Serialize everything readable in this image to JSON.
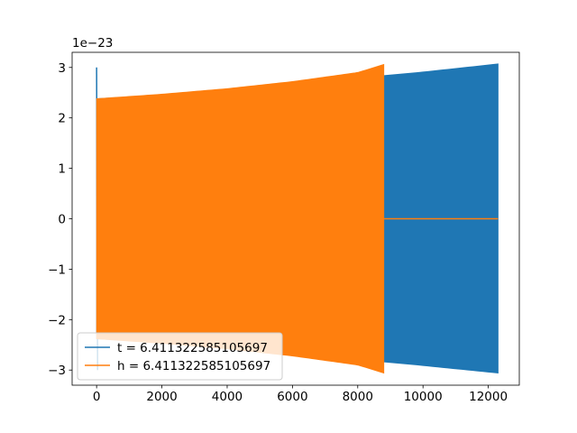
{
  "chart_data": {
    "type": "line",
    "title": "",
    "xlabel": "",
    "ylabel": "",
    "y_offset_label": "1e−23",
    "y_scale_exponent": -23,
    "xlim": [
      -750,
      12950
    ],
    "ylim": [
      -3.3,
      3.3
    ],
    "x_ticks": [
      0,
      2000,
      4000,
      6000,
      8000,
      10000,
      12000
    ],
    "x_tick_labels": [
      "0",
      "2000",
      "4000",
      "6000",
      "8000",
      "10000",
      "12000"
    ],
    "y_ticks": [
      -3,
      -2,
      -1,
      0,
      1,
      2,
      3
    ],
    "y_tick_labels": [
      "−3",
      "−2",
      "−1",
      "0",
      "1",
      "2",
      "3"
    ],
    "grid": false,
    "legend_position": "lower-left",
    "series": [
      {
        "name": "t = 6.411322585105697",
        "color": "#1f77b4",
        "style": "dense-oscillation",
        "start_spike": [
          [
            0,
            3.0
          ],
          [
            30,
            -3.0
          ]
        ],
        "envelope_x": [
          0,
          2000,
          4000,
          6000,
          8000,
          10000,
          12300
        ],
        "envelope_upper": [
          2.38,
          2.45,
          2.54,
          2.65,
          2.79,
          2.91,
          3.07
        ],
        "envelope_lower": [
          -2.38,
          -2.45,
          -2.54,
          -2.65,
          -2.79,
          -2.91,
          -3.06
        ]
      },
      {
        "name": "h = 6.411322585105697",
        "color": "#ff7f0e",
        "style": "dense-oscillation",
        "envelope_x": [
          0,
          2000,
          4000,
          6000,
          8000,
          8800
        ],
        "envelope_upper": [
          2.38,
          2.47,
          2.58,
          2.72,
          2.9,
          3.06
        ],
        "envelope_lower": [
          -2.38,
          -2.47,
          -2.58,
          -2.72,
          -2.9,
          -3.06
        ],
        "tail": [
          [
            8800,
            0
          ],
          [
            12300,
            0
          ]
        ]
      }
    ]
  }
}
